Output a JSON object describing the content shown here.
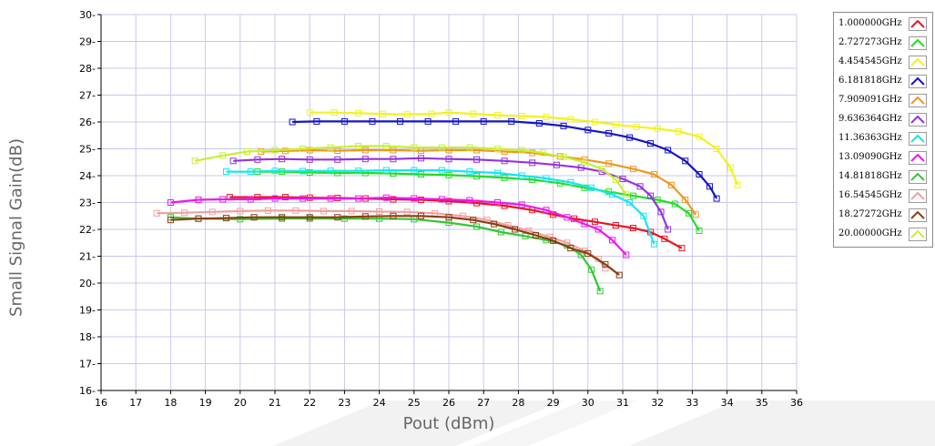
{
  "chart_data": {
    "type": "line",
    "xlabel": "Pout (dBm)",
    "ylabel": "Small Signal Gain(dB)",
    "xlim": [
      16,
      36
    ],
    "ylim": [
      16,
      30
    ],
    "x_ticks": [
      "16",
      "17",
      "18",
      "19",
      "20",
      "21",
      "22",
      "23",
      "24",
      "25",
      "26",
      "27",
      "28",
      "29",
      "30",
      "31",
      "32",
      "33",
      "34",
      "35",
      "36"
    ],
    "y_ticks": [
      "16",
      "17",
      "18",
      "19",
      "20",
      "21",
      "22",
      "23",
      "24",
      "25",
      "26",
      "27",
      "28",
      "29",
      "30"
    ],
    "grid": true,
    "legend_position": "right",
    "series": [
      {
        "name": "1.000000GHz",
        "color": "#e8141e",
        "points": [
          [
            19.7,
            23.2
          ],
          [
            20.5,
            23.2
          ],
          [
            21.3,
            23.2
          ],
          [
            22,
            23.18
          ],
          [
            22.8,
            23.17
          ],
          [
            23.6,
            23.15
          ],
          [
            24.4,
            23.12
          ],
          [
            25.2,
            23.1
          ],
          [
            26,
            23.05
          ],
          [
            26.8,
            22.98
          ],
          [
            27.6,
            22.88
          ],
          [
            28.4,
            22.72
          ],
          [
            29,
            22.55
          ],
          [
            29.6,
            22.4
          ],
          [
            30.2,
            22.28
          ],
          [
            30.8,
            22.15
          ],
          [
            31.3,
            22.05
          ],
          [
            31.8,
            21.9
          ],
          [
            32.2,
            21.65
          ],
          [
            32.7,
            21.3
          ]
        ]
      },
      {
        "name": "2.727273GHz",
        "color": "#22dd22",
        "points": [
          [
            20.5,
            24.15
          ],
          [
            21.2,
            24.15
          ],
          [
            22,
            24.12
          ],
          [
            22.8,
            24.1
          ],
          [
            23.6,
            24.1
          ],
          [
            24.4,
            24.08
          ],
          [
            25.2,
            24.05
          ],
          [
            26,
            24.02
          ],
          [
            26.8,
            23.98
          ],
          [
            27.6,
            23.92
          ],
          [
            28.4,
            23.85
          ],
          [
            29.2,
            23.72
          ],
          [
            29.9,
            23.55
          ],
          [
            30.6,
            23.4
          ],
          [
            31.3,
            23.25
          ],
          [
            32,
            23.1
          ],
          [
            32.5,
            22.95
          ],
          [
            32.9,
            22.6
          ],
          [
            33.2,
            21.95
          ]
        ]
      },
      {
        "name": "4.454545GHz",
        "color": "#f2f21e",
        "points": [
          [
            22,
            26.35
          ],
          [
            22.7,
            26.35
          ],
          [
            23.4,
            26.33
          ],
          [
            24.1,
            26.3
          ],
          [
            24.8,
            26.28
          ],
          [
            25.5,
            26.3
          ],
          [
            26,
            26.35
          ],
          [
            26.7,
            26.3
          ],
          [
            27.4,
            26.25
          ],
          [
            28.1,
            26.22
          ],
          [
            28.8,
            26.18
          ],
          [
            29.5,
            26.1
          ],
          [
            30.2,
            26
          ],
          [
            30.8,
            25.9
          ],
          [
            31.4,
            25.82
          ],
          [
            32,
            25.75
          ],
          [
            32.6,
            25.65
          ],
          [
            33.2,
            25.45
          ],
          [
            33.7,
            25
          ],
          [
            34.1,
            24.3
          ],
          [
            34.3,
            23.65
          ]
        ]
      },
      {
        "name": "6.181818GHz",
        "color": "#1414c8",
        "points": [
          [
            21.5,
            26
          ],
          [
            22.2,
            26.02
          ],
          [
            23,
            26.02
          ],
          [
            23.8,
            26.02
          ],
          [
            24.6,
            26.02
          ],
          [
            25.4,
            26.02
          ],
          [
            26.2,
            26.02
          ],
          [
            27,
            26.02
          ],
          [
            27.8,
            26.02
          ],
          [
            28.6,
            25.95
          ],
          [
            29.3,
            25.85
          ],
          [
            30,
            25.7
          ],
          [
            30.6,
            25.58
          ],
          [
            31.2,
            25.42
          ],
          [
            31.8,
            25.2
          ],
          [
            32.3,
            24.95
          ],
          [
            32.8,
            24.55
          ],
          [
            33.2,
            24.05
          ],
          [
            33.5,
            23.6
          ],
          [
            33.7,
            23.15
          ]
        ]
      },
      {
        "name": "7.909091GHz",
        "color": "#f0961e",
        "points": [
          [
            20.6,
            24.9
          ],
          [
            21.3,
            24.92
          ],
          [
            22,
            24.95
          ],
          [
            22.8,
            24.93
          ],
          [
            23.6,
            24.95
          ],
          [
            24.4,
            24.95
          ],
          [
            25.2,
            24.93
          ],
          [
            26,
            24.95
          ],
          [
            26.8,
            24.95
          ],
          [
            27.6,
            24.9
          ],
          [
            28.4,
            24.85
          ],
          [
            29.2,
            24.72
          ],
          [
            29.9,
            24.6
          ],
          [
            30.6,
            24.45
          ],
          [
            31.3,
            24.25
          ],
          [
            31.9,
            24.05
          ],
          [
            32.4,
            23.65
          ],
          [
            32.8,
            23.1
          ],
          [
            33.1,
            22.55
          ]
        ]
      },
      {
        "name": "9.636364GHz",
        "color": "#9632dc",
        "points": [
          [
            19.8,
            24.55
          ],
          [
            20.5,
            24.6
          ],
          [
            21.2,
            24.62
          ],
          [
            22,
            24.6
          ],
          [
            22.8,
            24.6
          ],
          [
            23.6,
            24.62
          ],
          [
            24.4,
            24.62
          ],
          [
            25.2,
            24.65
          ],
          [
            26,
            24.62
          ],
          [
            26.8,
            24.6
          ],
          [
            27.6,
            24.55
          ],
          [
            28.4,
            24.48
          ],
          [
            29.1,
            24.4
          ],
          [
            29.8,
            24.3
          ],
          [
            30.4,
            24.15
          ],
          [
            31,
            23.88
          ],
          [
            31.5,
            23.6
          ],
          [
            31.8,
            23.25
          ],
          [
            32.1,
            22.65
          ],
          [
            32.3,
            22
          ]
        ]
      },
      {
        "name": "11.36363GHz",
        "color": "#14e6f0",
        "points": [
          [
            19.6,
            24.15
          ],
          [
            20.3,
            24.15
          ],
          [
            21,
            24.18
          ],
          [
            21.8,
            24.17
          ],
          [
            22.6,
            24.18
          ],
          [
            23.4,
            24.18
          ],
          [
            24.2,
            24.2
          ],
          [
            25,
            24.2
          ],
          [
            25.8,
            24.2
          ],
          [
            26.6,
            24.15
          ],
          [
            27.4,
            24.1
          ],
          [
            28.1,
            24
          ],
          [
            28.8,
            23.9
          ],
          [
            29.5,
            23.75
          ],
          [
            30.1,
            23.55
          ],
          [
            30.7,
            23.3
          ],
          [
            31.2,
            23
          ],
          [
            31.6,
            22.5
          ],
          [
            31.9,
            21.45
          ]
        ]
      },
      {
        "name": "13.09090GHz",
        "color": "#f014f0",
        "points": [
          [
            18,
            23
          ],
          [
            18.8,
            23.1
          ],
          [
            19.5,
            23.12
          ],
          [
            20.3,
            23.12
          ],
          [
            21,
            23.15
          ],
          [
            21.8,
            23.15
          ],
          [
            22.6,
            23.15
          ],
          [
            23.4,
            23.15
          ],
          [
            24.2,
            23.18
          ],
          [
            25,
            23.15
          ],
          [
            25.8,
            23.12
          ],
          [
            26.6,
            23.08
          ],
          [
            27.4,
            23
          ],
          [
            28.1,
            22.92
          ],
          [
            28.8,
            22.72
          ],
          [
            29.4,
            22.45
          ],
          [
            29.9,
            22.2
          ],
          [
            30.3,
            22
          ],
          [
            30.7,
            21.6
          ],
          [
            31.1,
            21.05
          ]
        ]
      },
      {
        "name": "14.81818GHz",
        "color": "#32c832",
        "points": [
          [
            18,
            22.45
          ],
          [
            18.8,
            22.4
          ],
          [
            20,
            22.38
          ],
          [
            21.2,
            22.4
          ],
          [
            22,
            22.4
          ],
          [
            23,
            22.4
          ],
          [
            24,
            22.4
          ],
          [
            25,
            22.38
          ],
          [
            26,
            22.25
          ],
          [
            26.8,
            22.1
          ],
          [
            27.5,
            21.9
          ],
          [
            28.2,
            21.75
          ],
          [
            28.8,
            21.6
          ],
          [
            29.4,
            21.4
          ],
          [
            29.8,
            21.05
          ],
          [
            30.1,
            20.5
          ],
          [
            30.35,
            19.7
          ]
        ]
      },
      {
        "name": "16.54545GHz",
        "color": "#f0a0a0",
        "points": [
          [
            17.6,
            22.6
          ],
          [
            18.4,
            22.62
          ],
          [
            19.2,
            22.65
          ],
          [
            20,
            22.68
          ],
          [
            20.8,
            22.7
          ],
          [
            21.6,
            22.7
          ],
          [
            22.4,
            22.68
          ],
          [
            23.2,
            22.68
          ],
          [
            24,
            22.66
          ],
          [
            24.8,
            22.65
          ],
          [
            25.6,
            22.6
          ],
          [
            26.4,
            22.5
          ],
          [
            27.1,
            22.35
          ],
          [
            27.7,
            22.15
          ],
          [
            28.3,
            21.95
          ],
          [
            28.9,
            21.72
          ],
          [
            29.4,
            21.5
          ],
          [
            29.9,
            21.2
          ],
          [
            30.3,
            20.9
          ],
          [
            30.5,
            20.55
          ]
        ]
      },
      {
        "name": "18.27272GHz",
        "color": "#8c3c14",
        "points": [
          [
            18,
            22.35
          ],
          [
            18.8,
            22.4
          ],
          [
            19.6,
            22.42
          ],
          [
            20.4,
            22.45
          ],
          [
            21.2,
            22.45
          ],
          [
            22,
            22.45
          ],
          [
            22.8,
            22.45
          ],
          [
            23.6,
            22.48
          ],
          [
            24.4,
            22.5
          ],
          [
            25.2,
            22.5
          ],
          [
            26,
            22.45
          ],
          [
            26.7,
            22.35
          ],
          [
            27.3,
            22.2
          ],
          [
            27.9,
            22
          ],
          [
            28.5,
            21.78
          ],
          [
            29,
            21.58
          ],
          [
            29.5,
            21.3
          ],
          [
            30,
            21.1
          ],
          [
            30.5,
            20.7
          ],
          [
            30.9,
            20.3
          ]
        ]
      },
      {
        "name": "20.00000GHz",
        "color": "#c8f032",
        "points": [
          [
            18.7,
            24.55
          ],
          [
            19.5,
            24.75
          ],
          [
            20.2,
            24.9
          ],
          [
            21,
            24.95
          ],
          [
            21.8,
            25
          ],
          [
            22.6,
            25.05
          ],
          [
            23.4,
            25.1
          ],
          [
            24.2,
            25.1
          ],
          [
            25,
            25.05
          ],
          [
            25.8,
            25.05
          ],
          [
            26.6,
            25.05
          ],
          [
            27.4,
            25
          ],
          [
            28.1,
            24.95
          ],
          [
            28.7,
            24.85
          ],
          [
            29.3,
            24.7
          ],
          [
            29.9,
            24.5
          ],
          [
            30.4,
            24.25
          ],
          [
            30.8,
            23.85
          ],
          [
            31.1,
            23.3
          ]
        ]
      }
    ]
  }
}
